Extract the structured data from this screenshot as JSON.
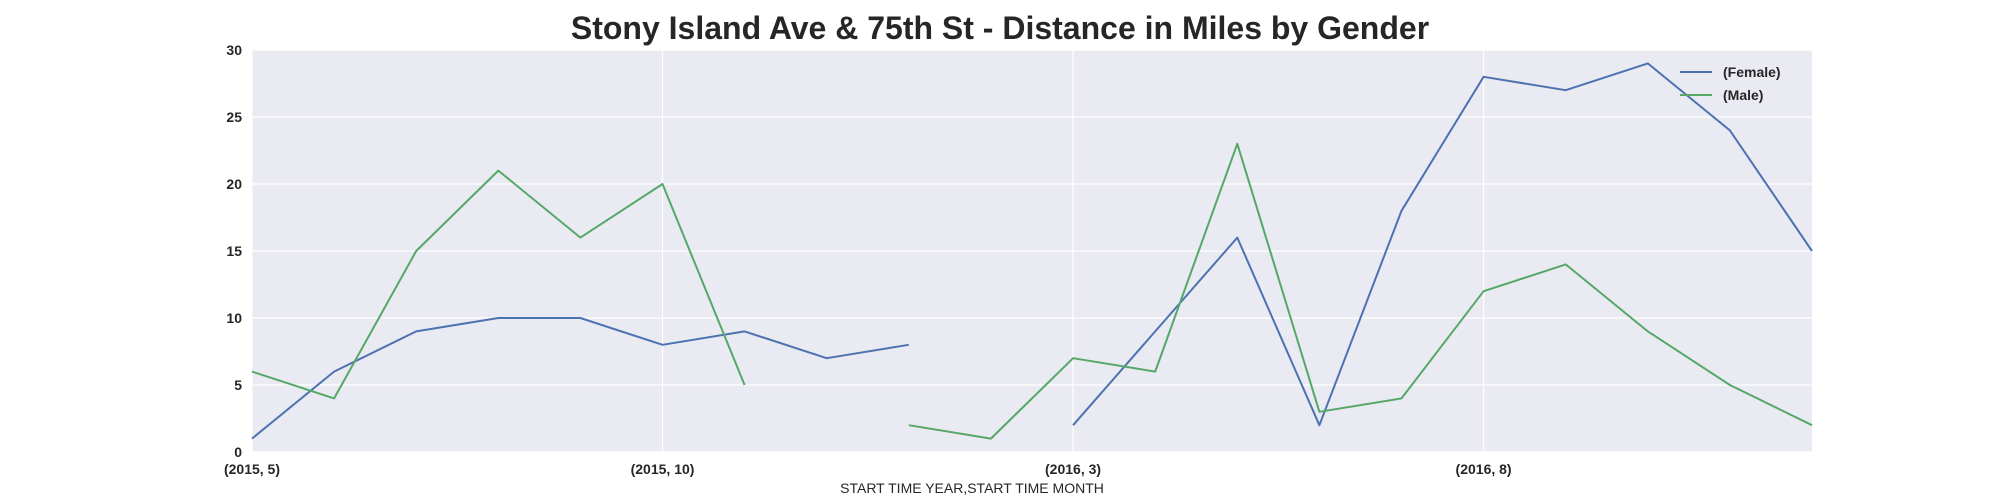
{
  "chart_data": {
    "type": "line",
    "title": "Stony Island Ave & 75th St - Distance in Miles by Gender",
    "xlabel": "START TIME YEAR,START TIME MONTH",
    "ylabel": "",
    "categories": [
      "(2015, 5)",
      "(2015, 6)",
      "(2015, 7)",
      "(2015, 8)",
      "(2015, 9)",
      "(2015, 10)",
      "(2015, 11)",
      "(2015, 12)",
      "(2016, 1)",
      "(2016, 2)",
      "(2016, 3)",
      "(2016, 4)",
      "(2016, 5)",
      "(2016, 6)",
      "(2016, 7)",
      "(2016, 8)",
      "(2016, 9)",
      "(2016, 10)",
      "(2016, 11)",
      "(2016, 12)"
    ],
    "xtick_labels": [
      "(2015, 5)",
      "(2015, 10)",
      "(2016, 3)",
      "(2016, 8)"
    ],
    "xtick_indices": [
      0,
      5,
      10,
      15
    ],
    "ylim": [
      0,
      30
    ],
    "yticks": [
      0,
      5,
      10,
      15,
      20,
      25,
      30
    ],
    "grid": true,
    "legend_position": "top-right",
    "series": [
      {
        "name": "(Female)",
        "color": "#4c72b0",
        "values": [
          1,
          6,
          9,
          10,
          10,
          8,
          9,
          7,
          8,
          null,
          2,
          9,
          16,
          2,
          18,
          28,
          27,
          29,
          24,
          15
        ]
      },
      {
        "name": "(Male)",
        "color": "#55a868",
        "values": [
          6,
          4,
          15,
          21,
          16,
          20,
          5,
          null,
          2,
          1,
          7,
          6,
          23,
          3,
          4,
          12,
          14,
          9,
          5,
          2
        ]
      }
    ]
  }
}
